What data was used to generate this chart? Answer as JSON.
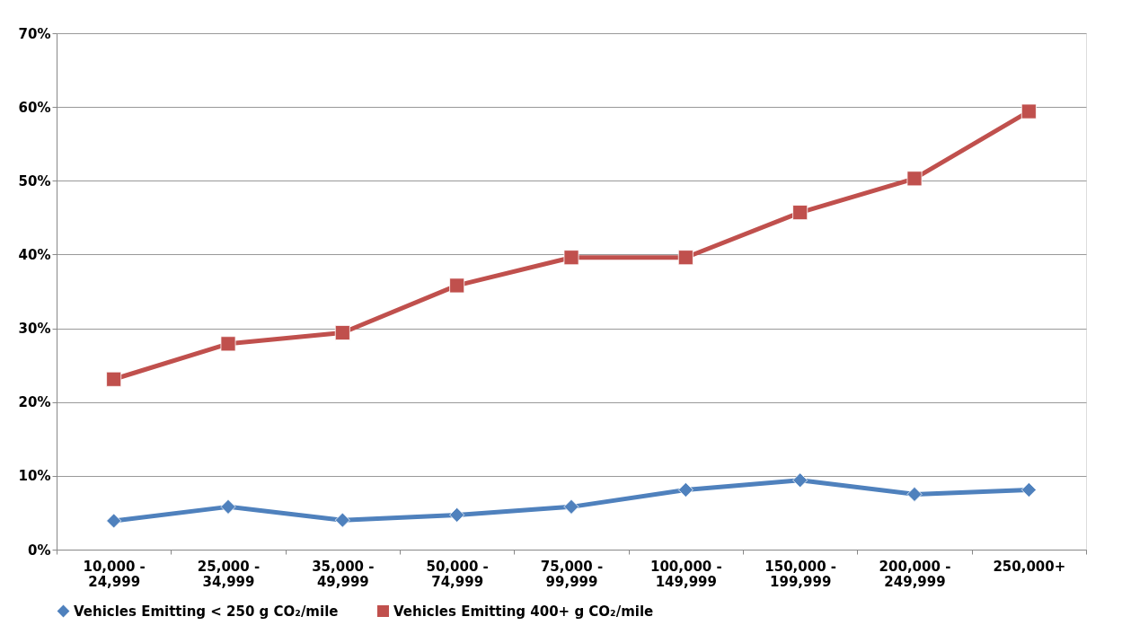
{
  "chart_data": {
    "type": "line",
    "categories": [
      "10,000 -\n24,999",
      "25,000 -\n34,999",
      "35,000 -\n49,999",
      "50,000 -\n74,999",
      "75,000 -\n99,999",
      "100,000 -\n149,999",
      "150,000 -\n199,999",
      "200,000 -\n249,999",
      "250,000+"
    ],
    "series": [
      {
        "name": "Vehicles Emitting < 250 g CO₂/mile",
        "color": "#4f81bd",
        "marker": "diamond",
        "values": [
          3.9,
          5.8,
          4.0,
          4.7,
          5.8,
          8.1,
          9.4,
          7.5,
          8.1
        ]
      },
      {
        "name": "Vehicles Emitting 400+ g CO₂/mile",
        "color": "#c0504d",
        "marker": "square",
        "values": [
          23.1,
          27.9,
          29.4,
          35.8,
          39.6,
          39.6,
          45.7,
          50.3,
          59.4
        ]
      }
    ],
    "ylim": [
      0,
      70
    ],
    "yticks": [
      {
        "value": 0,
        "label": "0%"
      },
      {
        "value": 10,
        "label": "10%"
      },
      {
        "value": 20,
        "label": "20%"
      },
      {
        "value": 30,
        "label": "30%"
      },
      {
        "value": 40,
        "label": "40%"
      },
      {
        "value": 50,
        "label": "50%"
      },
      {
        "value": 60,
        "label": "60%"
      },
      {
        "value": 70,
        "label": "70%"
      }
    ],
    "grid": "y",
    "legend": "bottom",
    "line_style": "solid"
  }
}
